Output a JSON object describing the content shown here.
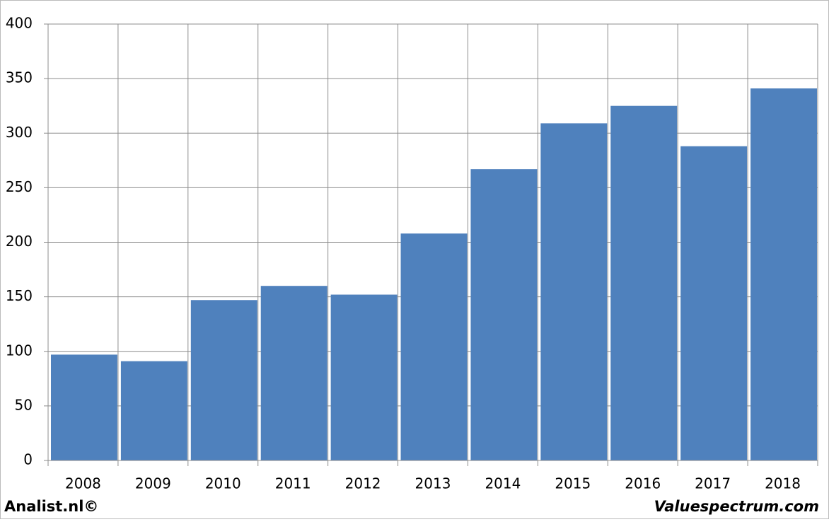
{
  "chart_data": {
    "type": "bar",
    "categories": [
      "2008",
      "2009",
      "2010",
      "2011",
      "2012",
      "2013",
      "2014",
      "2015",
      "2016",
      "2017",
      "2018"
    ],
    "values": [
      97,
      91,
      147,
      160,
      152,
      208,
      267,
      309,
      325,
      288,
      341
    ],
    "color": "#4f81bd",
    "ylim": [
      0,
      400
    ],
    "yticks": [
      0,
      50,
      100,
      150,
      200,
      250,
      300,
      350,
      400
    ],
    "grid": true,
    "footer_left": "Analist.nl©",
    "footer_right": "Valuespectrum.com"
  }
}
